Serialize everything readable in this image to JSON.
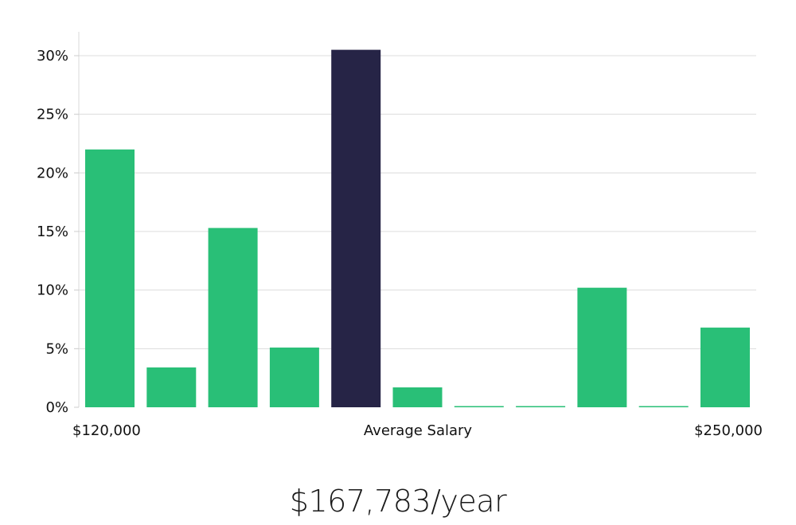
{
  "chart_data": {
    "type": "bar",
    "title": "",
    "xlabel": "Average Salary",
    "x_min_label": "$120,000",
    "x_max_label": "$250,000",
    "ylabel": "",
    "ylim": [
      0,
      32
    ],
    "yticks": [
      0,
      5,
      10,
      15,
      20,
      25,
      30
    ],
    "ytick_labels": [
      "0%",
      "5%",
      "10%",
      "15%",
      "20%",
      "25%",
      "30%"
    ],
    "values": [
      22.0,
      3.4,
      15.3,
      5.1,
      30.5,
      1.7,
      0.1,
      0.1,
      10.2,
      0.1,
      6.8
    ],
    "highlight_index": 4,
    "bar_color": "#29bf77",
    "highlight_color": "#262446",
    "grid": true
  },
  "salary_text": "$167,783/year"
}
